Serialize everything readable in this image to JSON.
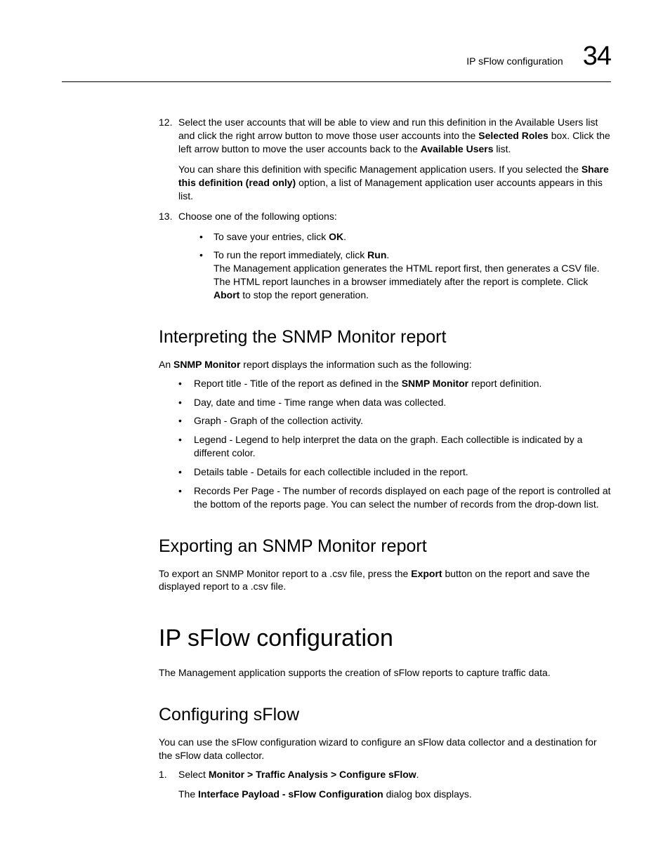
{
  "header": {
    "title": "IP sFlow configuration",
    "chapter": "34"
  },
  "steps": {
    "s12": {
      "num": "12.",
      "p1_a": "Select the user accounts that will be able to view and run this definition in the Available Users list and click the right arrow button to move those user accounts into the ",
      "p1_b": "Selected Roles",
      "p1_c": " box. Click the left arrow button to move the user accounts back to the ",
      "p1_d": "Available Users",
      "p1_e": " list.",
      "p2_a": "You can share this definition with specific Management application users. If you selected the ",
      "p2_b": "Share this definition (read only)",
      "p2_c": " option, a list of Management application user accounts appears in this list."
    },
    "s13": {
      "num": "13.",
      "p1": "Choose one of the following options:",
      "b1_a": "To save your entries, click ",
      "b1_b": "OK",
      "b1_c": ".",
      "b2_a": "To run the report immediately, click ",
      "b2_b": "Run",
      "b2_c": ".",
      "sub_a": "The Management application generates the HTML report first, then generates a CSV file. The HTML report launches in a browser immediately after the report is complete. Click ",
      "sub_b": "Abort",
      "sub_c": " to stop the report generation."
    }
  },
  "interp": {
    "title": "Interpreting the SNMP Monitor report",
    "intro_a": "An ",
    "intro_b": "SNMP Monitor",
    "intro_c": " report displays the information such as the following:",
    "items": {
      "i1_a": "Report title - Title of the report as defined in the ",
      "i1_b": "SNMP Monitor",
      "i1_c": " report definition.",
      "i2": "Day, date and time - Time range when data was collected.",
      "i3": "Graph - Graph of the collection activity.",
      "i4": "Legend - Legend to help interpret the data on the graph. Each collectible is indicated by a different color.",
      "i5": "Details table - Details for each collectible included in the report.",
      "i6": "Records Per Page - The number of records displayed on each page of the report is controlled at the bottom of the reports page. You can select the number of records from the drop-down list."
    }
  },
  "export": {
    "title": "Exporting an SNMP Monitor report",
    "p_a": "To export an SNMP Monitor report to a .csv file, press the ",
    "p_b": "Export",
    "p_c": " button on the report and save the displayed report to a .csv file."
  },
  "sflow": {
    "main_title": "IP sFlow configuration",
    "intro": "The Management application supports the creation of sFlow reports to capture traffic data.",
    "config_title": "Configuring sFlow",
    "config_intro": "You can use the sFlow configuration wizard to configure an sFlow data collector and a destination for the sFlow data collector.",
    "step1": {
      "num": "1.",
      "a": "Select ",
      "b": "Monitor > Traffic Analysis > Configure sFlow",
      "c": ".",
      "d": "The ",
      "e": "Interface Payload - sFlow Configuration",
      "f": " dialog box displays."
    }
  }
}
